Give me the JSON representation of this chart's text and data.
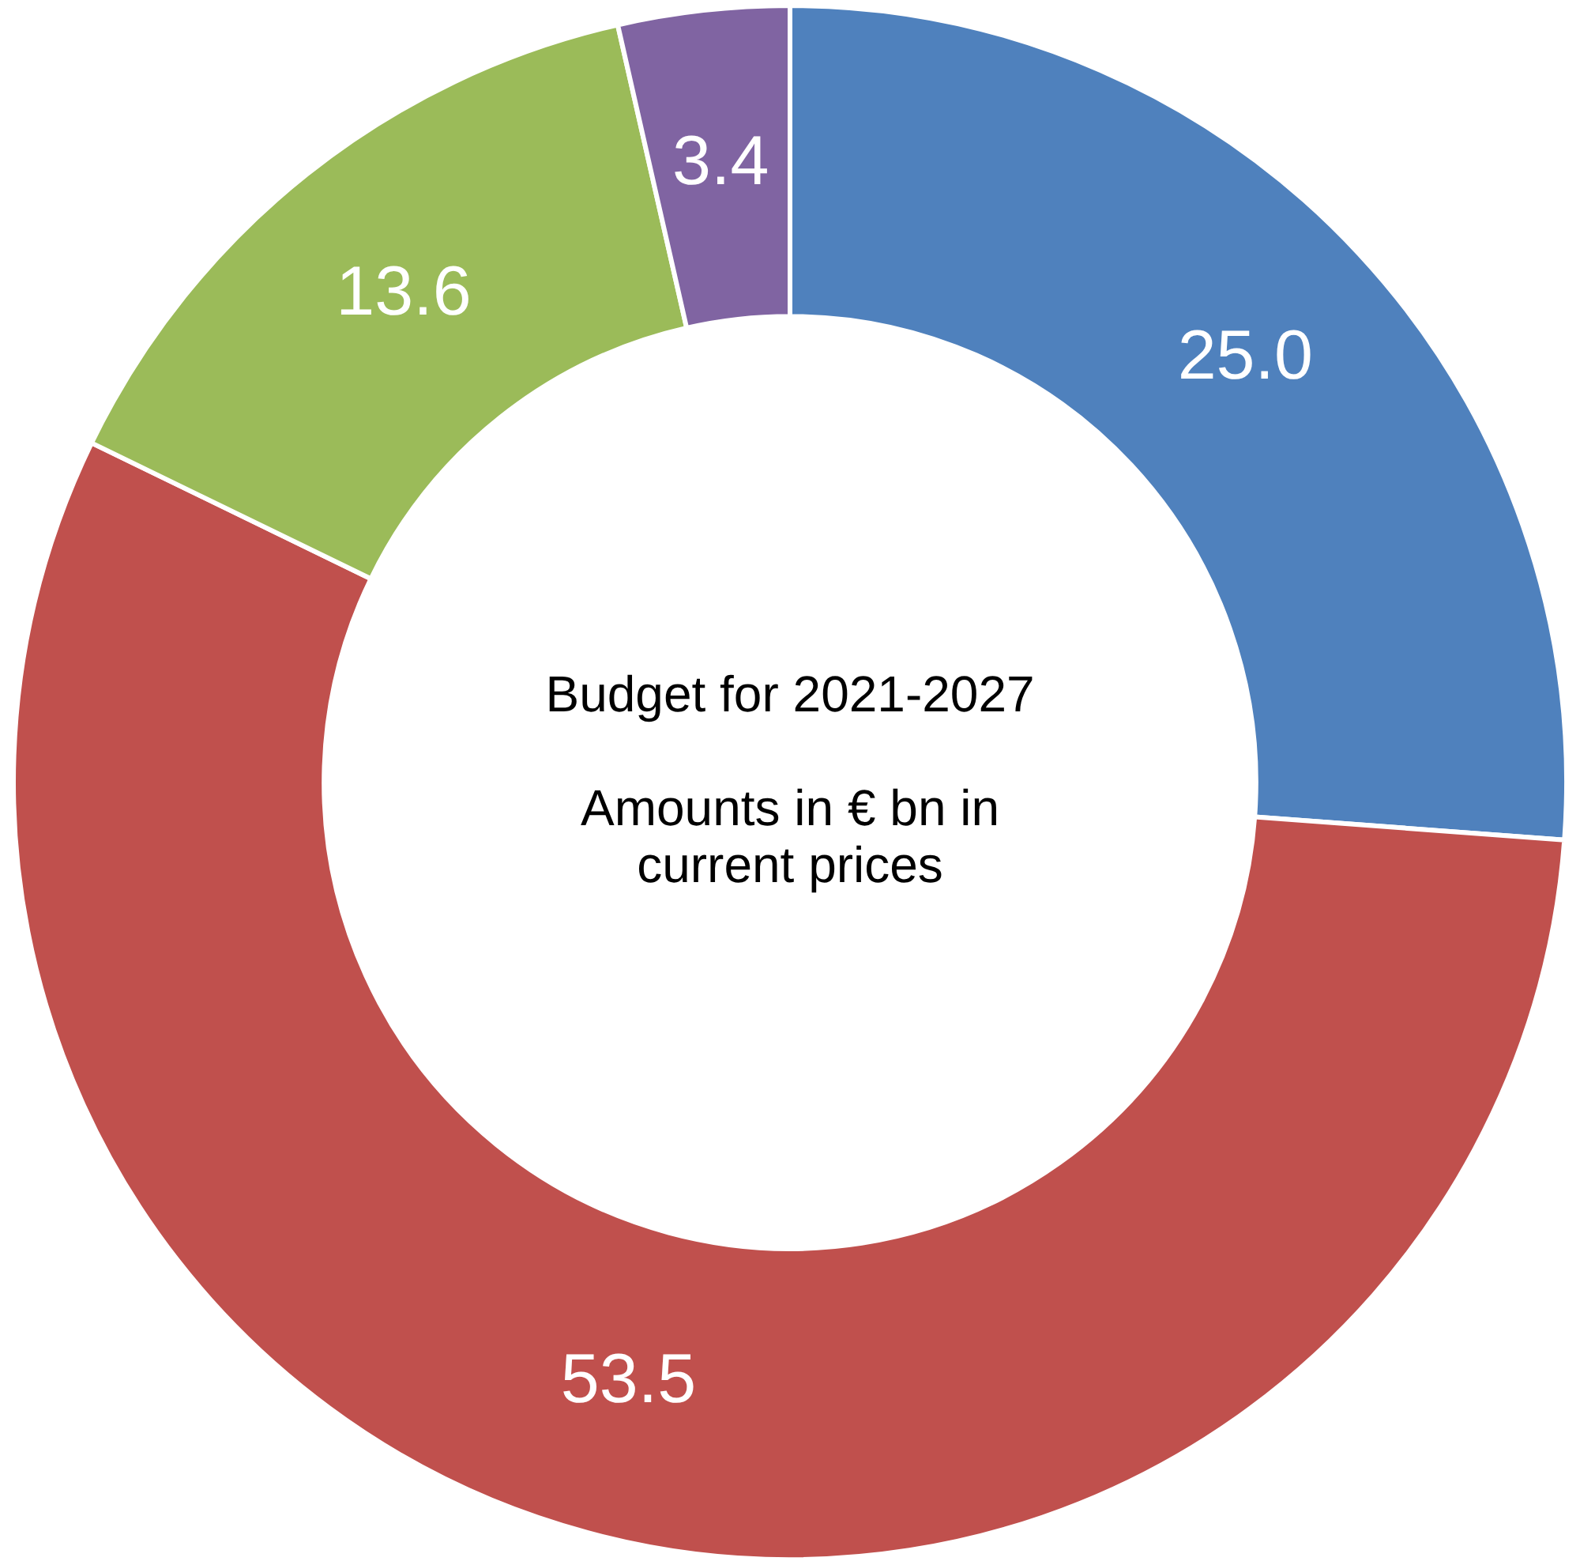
{
  "chart_data": {
    "type": "donut",
    "categories": [
      null,
      null,
      null,
      null
    ],
    "values": [
      25.0,
      53.5,
      13.6,
      3.4
    ],
    "colors": [
      "#4f81bd",
      "#c0504d",
      "#9bbb59",
      "#8064a2"
    ],
    "value_labels": [
      "25.0",
      "53.5",
      "13.6",
      "3.4"
    ],
    "legend": false,
    "annotations": [
      "Budget for 2021-2027",
      "Amounts in € bn in current prices"
    ]
  }
}
